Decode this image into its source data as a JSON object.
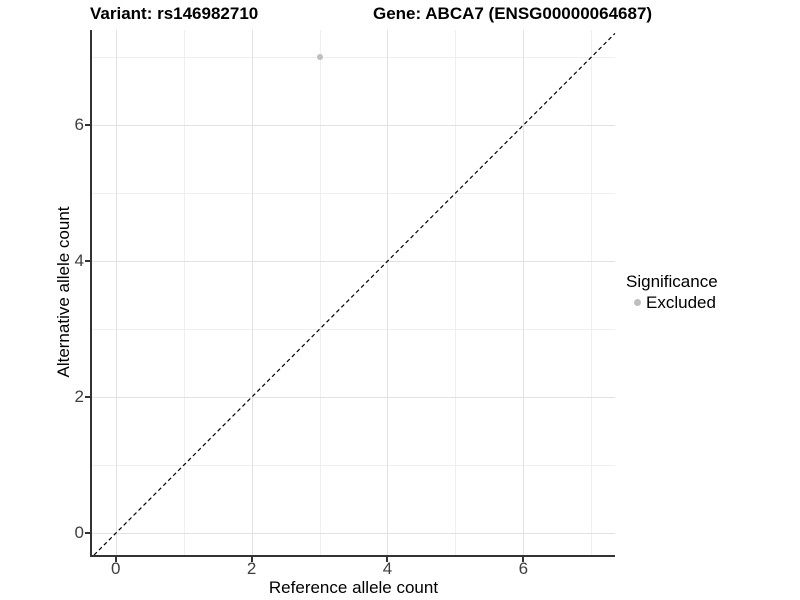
{
  "figure": {
    "title_left": "Variant: rs146982710",
    "title_right": "Gene: ABCA7 (ENSG00000064687)"
  },
  "legend": {
    "title": "Significance",
    "items": [
      {
        "label": "Excluded",
        "color": "#bebebe",
        "marker": "dot"
      }
    ],
    "position": "right"
  },
  "colors": {
    "background": "#ffffff",
    "axis_line": "#333333",
    "grid_major": "#e2e2e2",
    "grid_minor": "#efefef",
    "tick_label": "#404040",
    "excluded_point": "#bebebe",
    "reference_line": "#000000"
  },
  "chart_data": {
    "type": "scatter",
    "title": "Variant: rs146982710 — Gene: ABCA7 (ENSG00000064687)",
    "xlabel": "Reference allele count",
    "ylabel": "Alternative allele count",
    "xlim": [
      -0.35,
      7.35
    ],
    "ylim": [
      -0.32,
      7.4
    ],
    "xticks": [
      0,
      2,
      4,
      6
    ],
    "yticks": [
      0,
      2,
      4,
      6
    ],
    "xticks_minor": [
      1,
      3,
      5,
      7
    ],
    "yticks_minor": [
      1,
      3,
      5,
      7
    ],
    "grid": "major+minor",
    "legend_position": "right",
    "series": [
      {
        "name": "Excluded",
        "color": "#bebebe",
        "points": [
          {
            "x": 3,
            "y": 7
          }
        ]
      }
    ],
    "reference_line": {
      "type": "abline",
      "slope": 1,
      "intercept": 0,
      "style": "dashed",
      "color": "#000000"
    }
  }
}
